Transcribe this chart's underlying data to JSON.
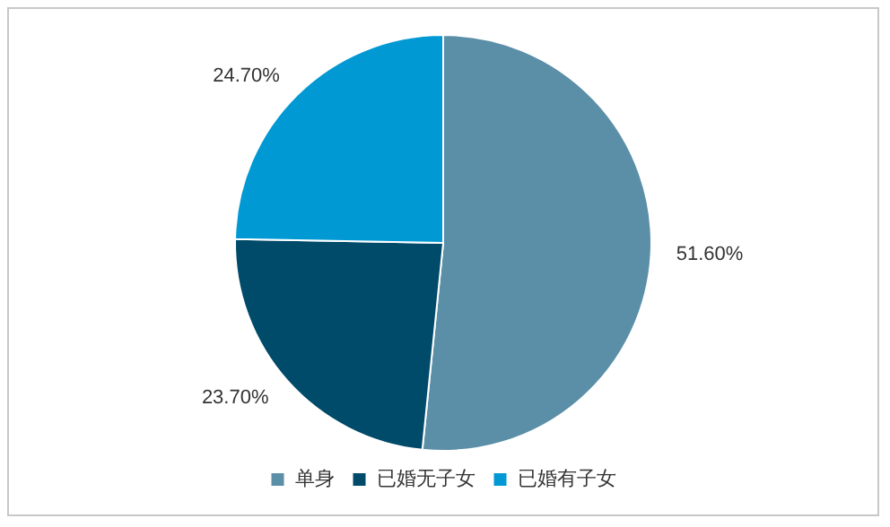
{
  "chart_data": {
    "type": "pie",
    "categories": [
      "单身",
      "已婚无子女",
      "已婚有子女"
    ],
    "values": [
      51.6,
      23.7,
      24.7
    ],
    "colors": [
      "#5b8fa8",
      "#004a6a",
      "#0099d4"
    ],
    "value_labels": [
      "51.60%",
      "23.70%",
      "24.70%"
    ],
    "legend": "bottom"
  }
}
